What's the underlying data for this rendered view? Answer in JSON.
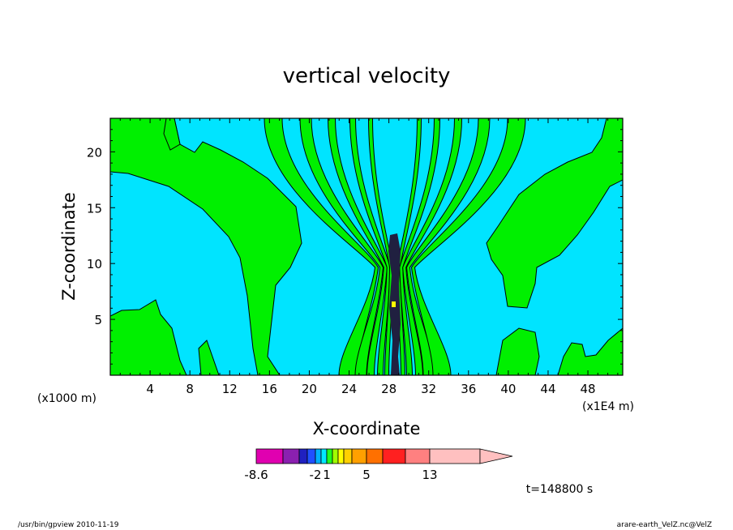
{
  "chart_data": {
    "type": "heatmap",
    "title": "vertical velocity",
    "xlabel": "X-coordinate",
    "ylabel": "Z-coordinate",
    "x_units_left": "(x1000 m)",
    "x_units_right": "(x1E4 m)",
    "xlim": [
      0,
      51.5
    ],
    "ylim": [
      0,
      23
    ],
    "x_ticks": [
      "4",
      "8",
      "12",
      "16",
      "20",
      "24",
      "28",
      "32",
      "36",
      "40",
      "44",
      "48"
    ],
    "x_tick_values": [
      4,
      8,
      12,
      16,
      20,
      24,
      28,
      32,
      36,
      40,
      44,
      48
    ],
    "y_ticks": [
      "5",
      "10",
      "15",
      "20"
    ],
    "y_tick_values": [
      5,
      10,
      15,
      20
    ],
    "colorbar": {
      "labels": [
        "-8.6",
        "-2",
        "1",
        "5",
        "13"
      ],
      "colors": [
        "#e000b0",
        "#8a20b0",
        "#2020c0",
        "#2050ff",
        "#00b0ff",
        "#00e8ff",
        "#20ff20",
        "#a0ff00",
        "#ffff00",
        "#ffd000",
        "#ffa000",
        "#ff7000",
        "#ff2020",
        "#ff8080",
        "#ffc0c0"
      ]
    },
    "field_colors": {
      "background": "#00e4ff",
      "positive": "#00f000",
      "core": "#202040",
      "contour": "#000000"
    },
    "time_label": "t=148800 s"
  },
  "footer": {
    "left": "/usr/bin/gpview   2010-11-19",
    "right": "arare-earth_VelZ.nc@VelZ"
  }
}
